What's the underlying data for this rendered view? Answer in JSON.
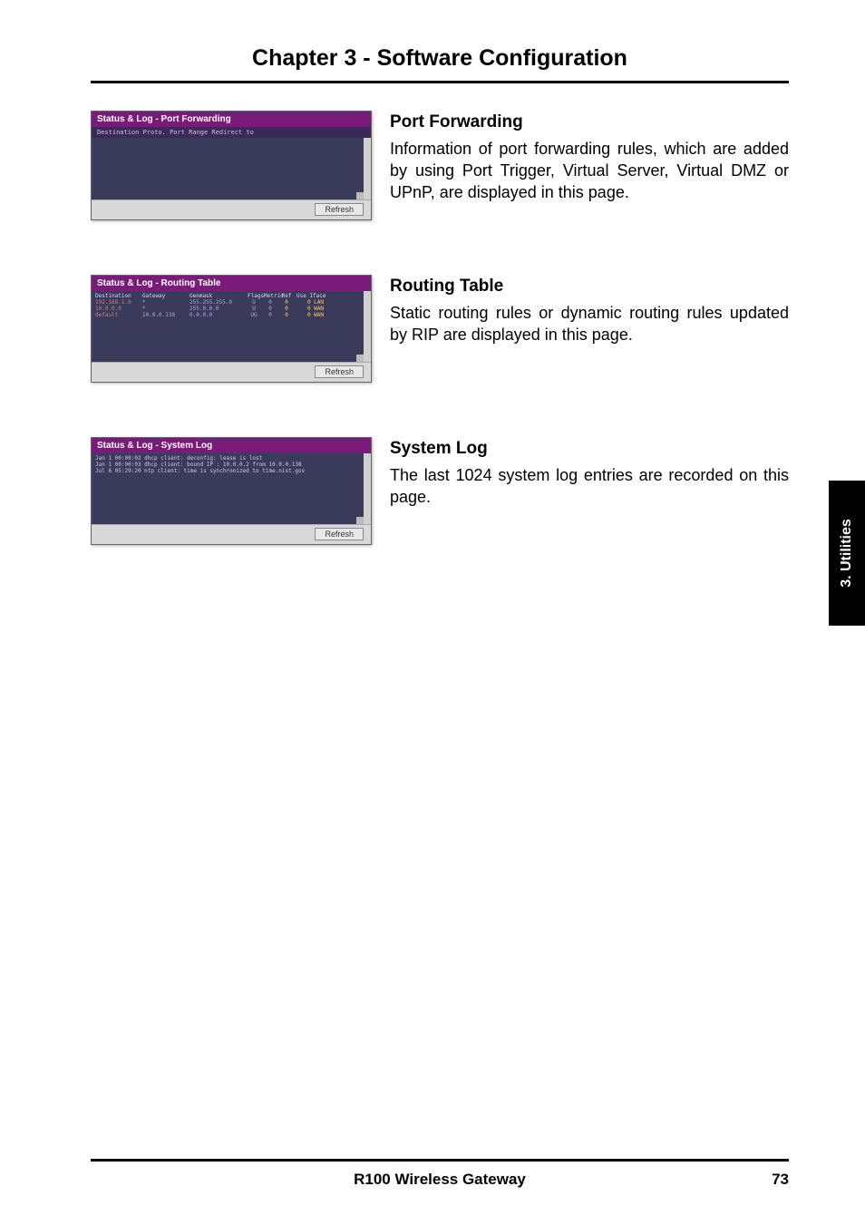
{
  "chapter_title": "Chapter 3 - Software Configuration",
  "side_tab": "3. Utilities",
  "footer": {
    "product": "R100 Wireless Gateway",
    "page_number": "73"
  },
  "refresh_label": "Refresh",
  "sections": {
    "port_forwarding": {
      "screenshot_title": "Status & Log - Port Forwarding",
      "columns_line": "Destination   Proto.  Port Range  Redirect to",
      "heading": "Port Forwarding",
      "body": "Information of port forwarding rules, which are added by using Port Trigger, Virtual Server, Virtual DMZ or UPnP, are displayed in this page."
    },
    "routing_table": {
      "screenshot_title": "Status & Log - Routing Table",
      "header": {
        "dest": "Destination",
        "gw": "Gateway",
        "mask": "Genmask",
        "flags": "Flags",
        "metric": "Metric",
        "ref": "Ref",
        "use": "Use Iface"
      },
      "rows": [
        {
          "dest": "192.168.1.0",
          "gw": "*",
          "mask": "255.255.255.0",
          "flags": "U",
          "metric": "0",
          "ref": "0",
          "use": "0 LAN"
        },
        {
          "dest": "10.0.0.0",
          "gw": "*",
          "mask": "255.0.0.0",
          "flags": "U",
          "metric": "0",
          "ref": "0",
          "use": "0 WAN"
        },
        {
          "dest": "default",
          "gw": "10.0.0.138",
          "mask": "0.0.0.0",
          "flags": "UG",
          "metric": "0",
          "ref": "0",
          "use": "0 WAN"
        }
      ],
      "heading": "Routing Table",
      "body": "Static routing rules or dynamic routing rules updated by RIP are displayed in this page."
    },
    "system_log": {
      "screenshot_title": "Status & Log - System Log",
      "rows": [
        "Jan  1 00:00:02  dhcp client: deconfig: lease is lost",
        "Jan  1 00:00:03  dhcp client: bound IP : 10.0.0.2 from 10.0.0.138",
        "Jul  6 05:29:20  ntp client: time is synchronized to time.nist.gov"
      ],
      "heading": "System Log",
      "body": "The last 1024 system log entries are recorded on this page."
    }
  }
}
